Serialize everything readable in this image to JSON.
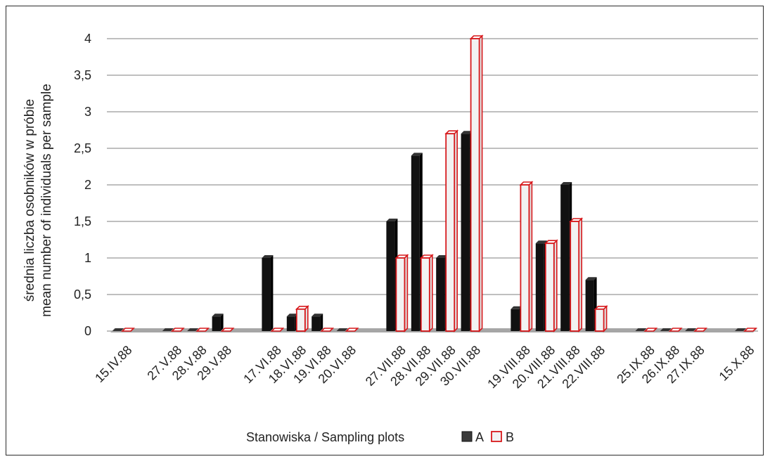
{
  "chart_data": {
    "type": "bar",
    "categories": [
      "15.IV.88",
      "",
      "27.V.88",
      "28.V.88",
      "29.V.88",
      "",
      "17.VI.88",
      "18.VI.88",
      "19.VI.88",
      "20.VI.88",
      "",
      "27.VII.88",
      "28.VII.88",
      "29.VII.88",
      "30.VII.88",
      "",
      "19.VIII.88",
      "20.VIII.88",
      "21.VIII.88",
      "22.VIII.88",
      "",
      "25.IX.88",
      "26.IX.88",
      "27.IX.88",
      "",
      "15.X.88"
    ],
    "series": [
      {
        "name": "A",
        "values": [
          0,
          null,
          0,
          0,
          0.2,
          null,
          1,
          0.2,
          0.2,
          0,
          null,
          1.5,
          2.4,
          1,
          2.7,
          null,
          0.3,
          1.2,
          2,
          0.7,
          null,
          0,
          0,
          0,
          null,
          0
        ]
      },
      {
        "name": "B",
        "values": [
          0,
          null,
          0,
          0,
          0,
          null,
          0,
          0.3,
          0,
          0,
          null,
          1,
          1,
          2.7,
          4,
          null,
          2,
          1.2,
          1.5,
          0.3,
          null,
          0,
          0,
          0,
          null,
          0
        ]
      }
    ],
    "ylim": [
      0,
      4
    ],
    "yticks": [
      "0",
      "0,5",
      "1",
      "1,5",
      "2",
      "2,5",
      "3",
      "3,5",
      "4"
    ],
    "ylabel_line1": "średnia liczba osobników w próbie",
    "ylabel_line2": "mean number of individuals per sample",
    "xlabel": "Stanowiska / Sampling plots",
    "grid": true,
    "legend_position": "bottom",
    "colors": {
      "A": "#111111",
      "B": "#f2f2f2",
      "B_border": "#d7191c",
      "grid": "#bfbfbf",
      "floor": "#a6a6a6"
    }
  }
}
